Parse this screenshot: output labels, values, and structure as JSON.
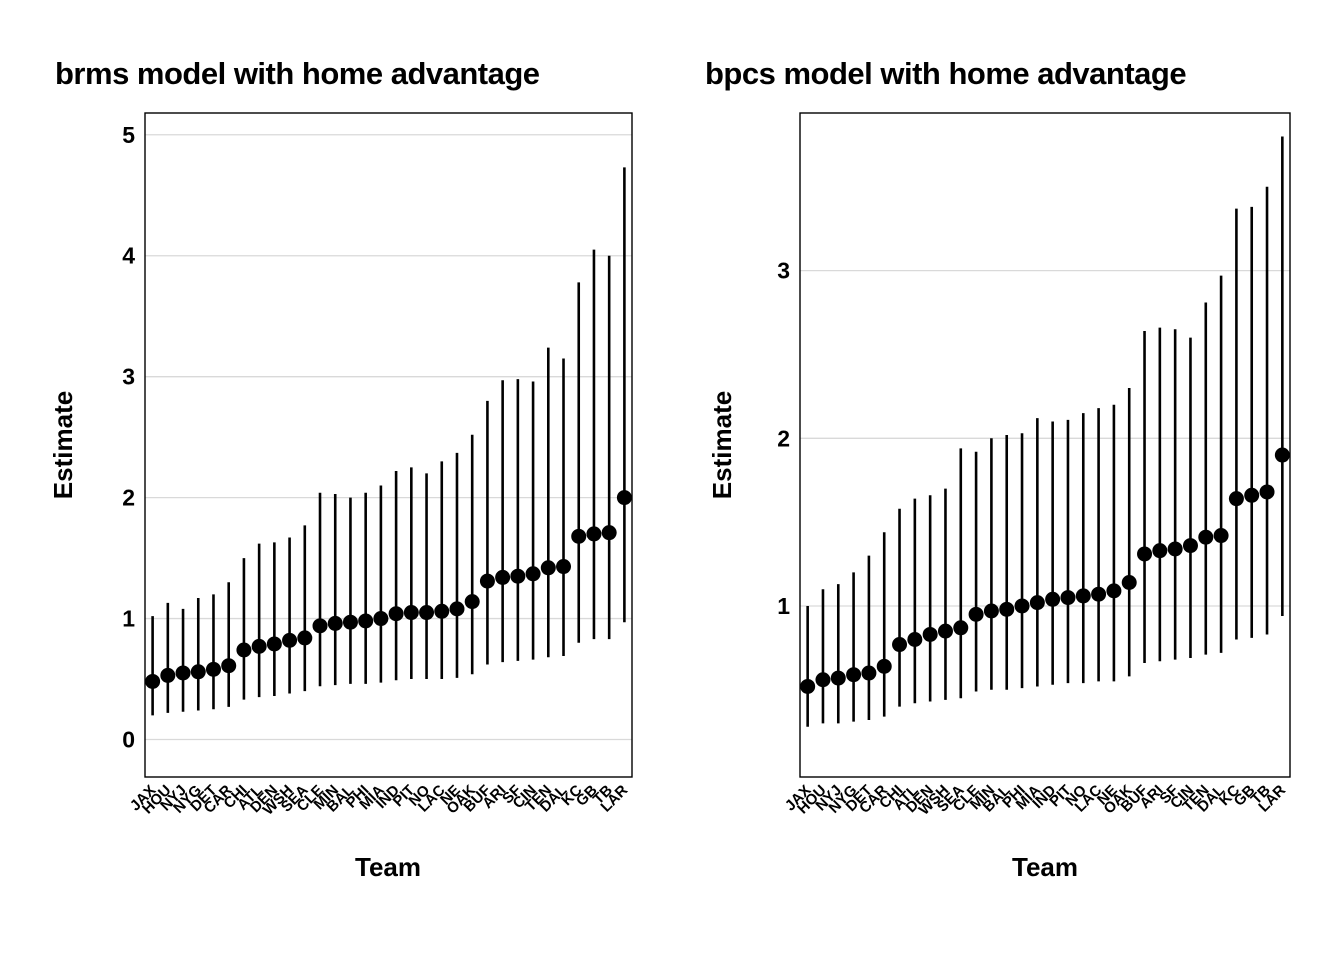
{
  "page": {
    "background": "#ffffff",
    "text_color": "#000000",
    "gridline_color": "#d9d9d9"
  },
  "chart_data": [
    {
      "type": "scatter",
      "variant": "pointrange",
      "title": "brms model with home advantage",
      "xlabel": "Team",
      "ylabel": "Estimate",
      "ylim": [
        -0.31,
        5.18
      ],
      "yticks": [
        0,
        1,
        2,
        3,
        4,
        5
      ],
      "grid": "horizontal-major",
      "legend": "none",
      "point_color": "#000000",
      "categories": [
        "JAX",
        "HOU",
        "NYJ",
        "NYG",
        "DET",
        "CAR",
        "CHI",
        "ATL",
        "DEN",
        "WSH",
        "SEA",
        "CLE",
        "MIN",
        "BAL",
        "PHI",
        "MIA",
        "IND",
        "PIT",
        "NO",
        "LAC",
        "NE",
        "OAK",
        "BUF",
        "ARI",
        "SF",
        "CIN",
        "TEN",
        "DAL",
        "KC",
        "GB",
        "TB",
        "LAR"
      ],
      "series": [
        {
          "name": "estimate",
          "values": [
            0.48,
            0.53,
            0.55,
            0.56,
            0.58,
            0.61,
            0.74,
            0.77,
            0.79,
            0.82,
            0.84,
            0.94,
            0.96,
            0.97,
            0.98,
            1.0,
            1.04,
            1.05,
            1.05,
            1.06,
            1.08,
            1.14,
            1.31,
            1.34,
            1.35,
            1.37,
            1.42,
            1.43,
            1.68,
            1.7,
            1.71,
            2.0
          ]
        },
        {
          "name": "lower",
          "values": [
            0.2,
            0.22,
            0.23,
            0.24,
            0.25,
            0.27,
            0.33,
            0.35,
            0.36,
            0.38,
            0.4,
            0.44,
            0.45,
            0.46,
            0.46,
            0.47,
            0.49,
            0.5,
            0.5,
            0.5,
            0.51,
            0.54,
            0.62,
            0.64,
            0.65,
            0.66,
            0.68,
            0.69,
            0.8,
            0.83,
            0.83,
            0.97
          ]
        },
        {
          "name": "upper",
          "values": [
            1.02,
            1.13,
            1.08,
            1.17,
            1.2,
            1.3,
            1.5,
            1.62,
            1.63,
            1.67,
            1.77,
            2.04,
            2.03,
            2.0,
            2.04,
            2.1,
            2.22,
            2.25,
            2.2,
            2.3,
            2.37,
            2.52,
            2.8,
            2.97,
            2.98,
            2.96,
            3.24,
            3.15,
            3.78,
            4.05,
            4.0,
            4.73
          ]
        }
      ]
    },
    {
      "type": "scatter",
      "variant": "pointrange",
      "title": "bpcs model with home advantage",
      "xlabel": "Team",
      "ylabel": "Estimate",
      "ylim": [
        -0.02,
        3.94
      ],
      "yticks": [
        1,
        2,
        3
      ],
      "grid": "horizontal-major",
      "legend": "none",
      "point_color": "#000000",
      "categories": [
        "JAX",
        "HOU",
        "NYJ",
        "NYG",
        "DET",
        "CAR",
        "CHI",
        "ATL",
        "DEN",
        "WSH",
        "SEA",
        "CLE",
        "MIN",
        "BAL",
        "PHI",
        "MIA",
        "IND",
        "PIT",
        "NO",
        "LAC",
        "NE",
        "OAK",
        "BUF",
        "ARI",
        "SF",
        "CIN",
        "TEN",
        "DAL",
        "KC",
        "GB",
        "TB",
        "LAR"
      ],
      "series": [
        {
          "name": "estimate",
          "values": [
            0.52,
            0.56,
            0.57,
            0.59,
            0.6,
            0.64,
            0.77,
            0.8,
            0.83,
            0.85,
            0.87,
            0.95,
            0.97,
            0.98,
            1.0,
            1.02,
            1.04,
            1.05,
            1.06,
            1.07,
            1.09,
            1.14,
            1.31,
            1.33,
            1.34,
            1.36,
            1.41,
            1.42,
            1.64,
            1.66,
            1.68,
            1.9
          ]
        },
        {
          "name": "lower",
          "values": [
            0.28,
            0.3,
            0.3,
            0.31,
            0.32,
            0.34,
            0.4,
            0.42,
            0.43,
            0.44,
            0.45,
            0.49,
            0.5,
            0.5,
            0.51,
            0.52,
            0.53,
            0.54,
            0.54,
            0.55,
            0.55,
            0.58,
            0.66,
            0.67,
            0.68,
            0.69,
            0.71,
            0.72,
            0.8,
            0.81,
            0.83,
            0.94
          ]
        },
        {
          "name": "upper",
          "values": [
            1.0,
            1.1,
            1.13,
            1.2,
            1.3,
            1.44,
            1.58,
            1.64,
            1.66,
            1.7,
            1.94,
            1.92,
            2.0,
            2.02,
            2.03,
            2.12,
            2.1,
            2.11,
            2.15,
            2.18,
            2.2,
            2.3,
            2.64,
            2.66,
            2.65,
            2.6,
            2.81,
            2.97,
            3.37,
            3.38,
            3.5,
            3.8
          ]
        }
      ]
    }
  ]
}
